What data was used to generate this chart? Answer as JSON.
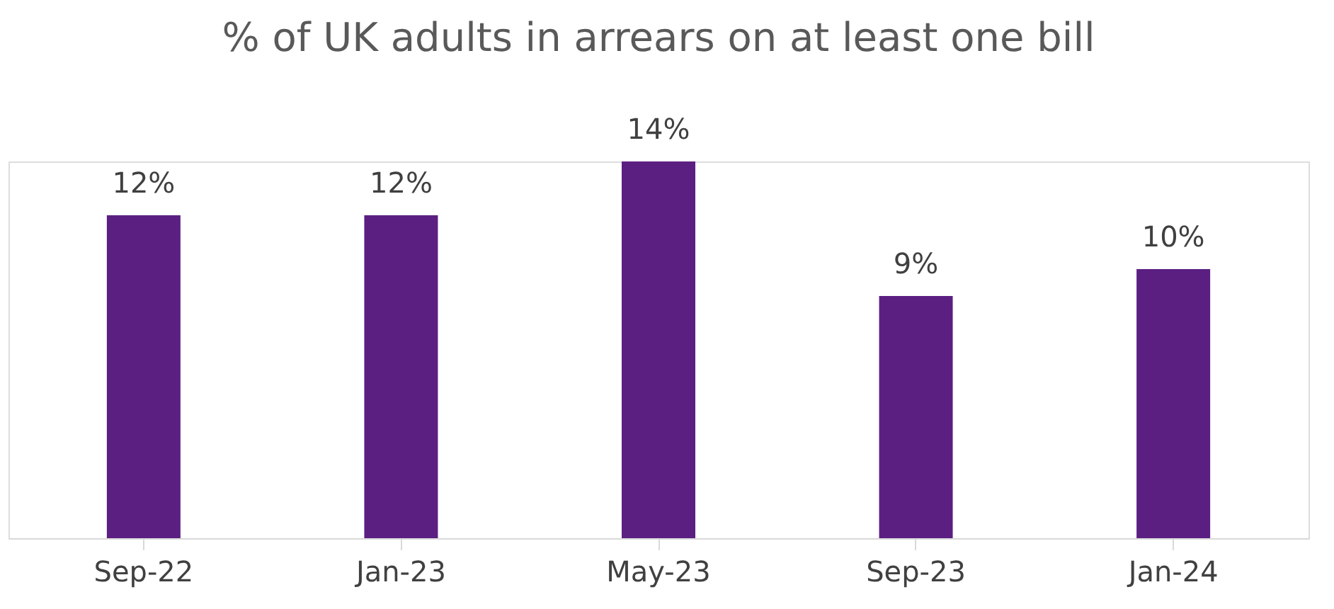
{
  "chart_data": {
    "type": "bar",
    "title": "% of UK adults in arrears on at least one bill",
    "categories": [
      "Sep-22",
      "Jan-23",
      "May-23",
      "Sep-23",
      "Jan-24"
    ],
    "values": [
      12,
      12,
      14,
      9,
      10
    ],
    "value_labels": [
      "12%",
      "12%",
      "14%",
      "9%",
      "10%"
    ],
    "color": "#5b1f82",
    "grid": false
  }
}
